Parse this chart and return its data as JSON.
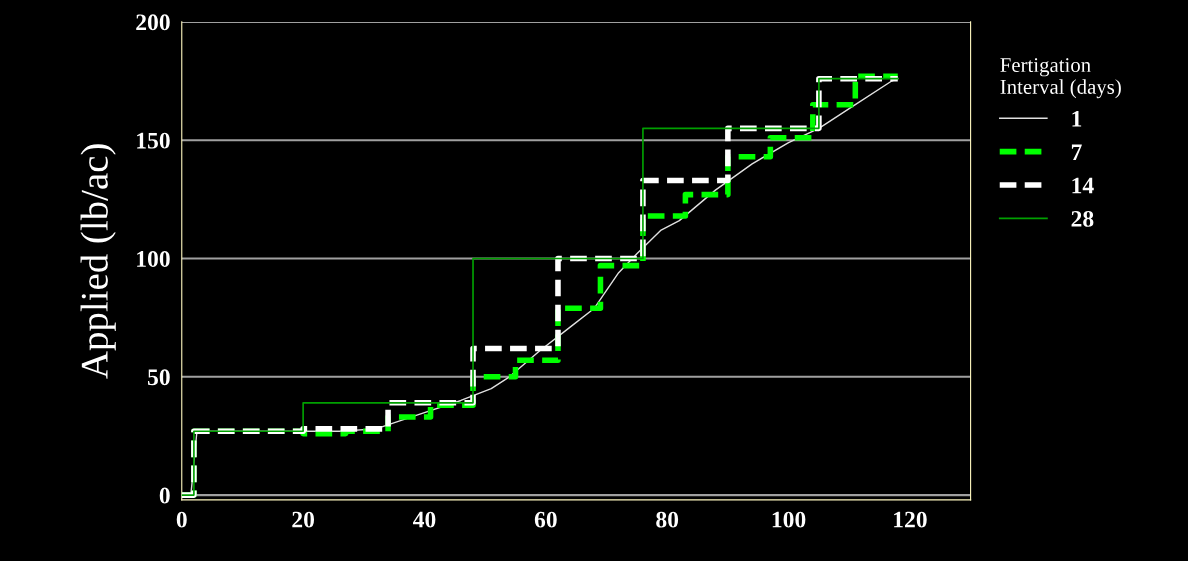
{
  "chart_data": {
    "type": "step",
    "ylabel": "Applied (lb/ac)",
    "legend_title": "Fertigation\nInterval (days)",
    "xlim": [
      0,
      130
    ],
    "xticks": [
      0,
      20,
      40,
      60,
      80,
      100,
      120
    ],
    "ylim": [
      -2,
      200
    ],
    "yticks": [
      0,
      50,
      100,
      150,
      200
    ],
    "grid": "y",
    "legend": "right",
    "marker": "none",
    "series": [
      {
        "name": "1",
        "type": "line",
        "color": "#e0e0e0",
        "line_style": "solid",
        "x": [
          0,
          1.5,
          2.5,
          20,
          26,
          32,
          39,
          46,
          51,
          54,
          59,
          64,
          68,
          72,
          75,
          79,
          82,
          88,
          94,
          100,
          105,
          111,
          117,
          118
        ],
        "values": [
          0,
          0,
          27,
          27,
          27,
          28,
          34,
          40,
          45,
          50,
          61,
          71,
          79,
          94,
          102,
          112,
          116,
          129,
          140,
          149,
          155,
          165,
          175,
          176
        ]
      },
      {
        "name": "7",
        "color": "#00ff00",
        "line_style": "dashed",
        "x": [
          0,
          2,
          20,
          27,
          34,
          41,
          48,
          55,
          62,
          69,
          76,
          83,
          90,
          97,
          104,
          111,
          118
        ],
        "values": [
          0,
          27,
          26,
          27,
          33,
          38,
          50,
          57,
          79,
          97,
          118,
          127,
          143,
          151,
          165,
          177,
          177
        ]
      },
      {
        "name": "14",
        "color": "#ffffff",
        "line_style": "dashed",
        "x": [
          0,
          2,
          20,
          34,
          48,
          62,
          76,
          90,
          105,
          118
        ],
        "values": [
          0,
          27,
          28,
          39,
          62,
          100,
          133,
          155,
          176,
          176
        ]
      },
      {
        "name": "28",
        "color": "#00a000",
        "line_style": "solid",
        "x": [
          0,
          2,
          20,
          48,
          76,
          105,
          118
        ],
        "values": [
          0,
          27,
          39,
          100,
          155,
          176,
          176
        ]
      }
    ]
  }
}
